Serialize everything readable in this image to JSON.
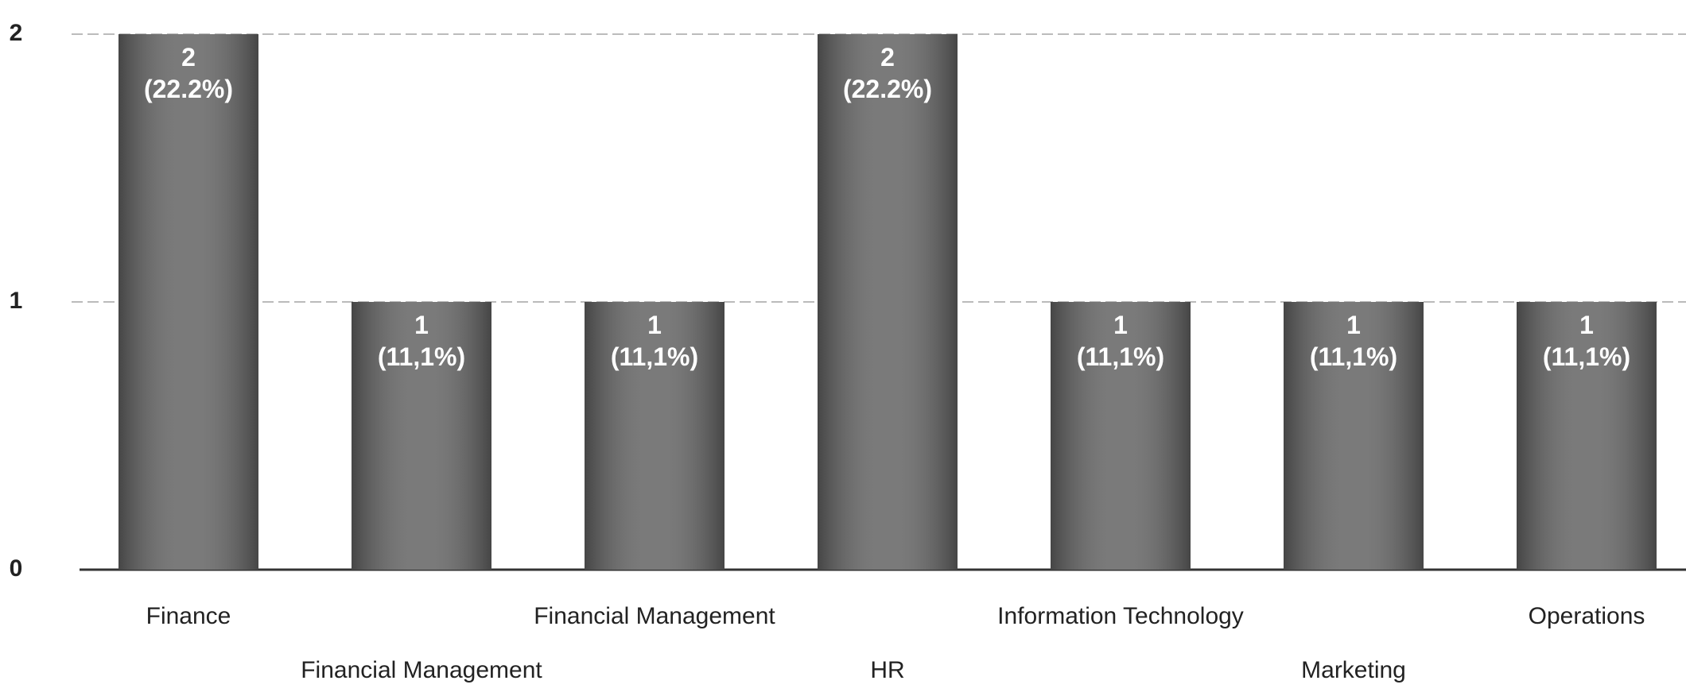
{
  "chart_data": {
    "type": "bar",
    "categories": [
      "Finance",
      "Financial Management",
      "Financial Management",
      "HR",
      "Information Technology",
      "Marketing",
      "Operations"
    ],
    "values": [
      2,
      1,
      1,
      2,
      1,
      1,
      1
    ],
    "value_labels": [
      "2\n(22.2%)",
      "1\n(11,1%)",
      "1\n(11,1%)",
      "2\n(22.2%)",
      "1\n(11,1%)",
      "1\n(11,1%)",
      "1\n(11,1%)"
    ],
    "color": "#6b6b6b",
    "ylim": [
      0,
      2
    ],
    "yticks": [
      0,
      1,
      2
    ],
    "grid": true
  }
}
